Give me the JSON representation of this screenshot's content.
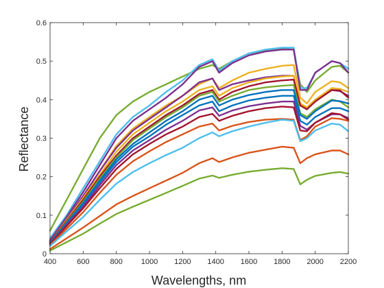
{
  "chart_data": {
    "type": "line",
    "title": "",
    "xlabel": "Wavelengths, nm",
    "ylabel": "Reflectance",
    "xlim": [
      400,
      2200
    ],
    "ylim": [
      0,
      0.6
    ],
    "xticks": [
      400,
      600,
      800,
      1000,
      1200,
      1400,
      1600,
      1800,
      2000,
      2200
    ],
    "yticks": [
      0,
      0.1,
      0.2,
      0.3,
      0.4,
      0.5,
      0.6
    ],
    "grid": false,
    "legend": "none",
    "x": [
      400,
      500,
      600,
      700,
      800,
      900,
      1000,
      1100,
      1200,
      1300,
      1380,
      1420,
      1500,
      1600,
      1700,
      1800,
      1870,
      1910,
      1950,
      2000,
      2100,
      2150,
      2200
    ],
    "series": [
      {
        "color": "#77AC30",
        "values": [
          0.06,
          0.14,
          0.22,
          0.3,
          0.36,
          0.395,
          0.42,
          0.44,
          0.46,
          0.48,
          0.49,
          0.48,
          0.5,
          0.52,
          0.528,
          0.532,
          0.53,
          0.44,
          0.42,
          0.45,
          0.485,
          0.488,
          0.47
        ]
      },
      {
        "color": "#4DBEEE",
        "values": [
          0.04,
          0.1,
          0.17,
          0.24,
          0.31,
          0.355,
          0.385,
          0.42,
          0.45,
          0.49,
          0.505,
          0.475,
          0.5,
          0.52,
          0.53,
          0.535,
          0.535,
          0.43,
          0.43,
          0.47,
          0.5,
          0.495,
          0.48
        ]
      },
      {
        "color": "#7E2F8E",
        "values": [
          0.035,
          0.095,
          0.16,
          0.23,
          0.3,
          0.345,
          0.375,
          0.405,
          0.44,
          0.485,
          0.5,
          0.47,
          0.495,
          0.515,
          0.525,
          0.53,
          0.53,
          0.425,
          0.425,
          0.47,
          0.5,
          0.495,
          0.47
        ]
      },
      {
        "color": "#EDB120",
        "values": [
          0.03,
          0.09,
          0.15,
          0.215,
          0.28,
          0.325,
          0.355,
          0.385,
          0.41,
          0.44,
          0.455,
          0.43,
          0.45,
          0.47,
          0.48,
          0.488,
          0.49,
          0.405,
          0.39,
          0.42,
          0.448,
          0.445,
          0.43
        ]
      },
      {
        "color": "#7E2F8E",
        "values": [
          0.032,
          0.09,
          0.15,
          0.215,
          0.275,
          0.32,
          0.35,
          0.38,
          0.41,
          0.445,
          0.455,
          0.425,
          0.44,
          0.45,
          0.458,
          0.462,
          0.462,
          0.385,
          0.375,
          0.4,
          0.425,
          0.422,
          0.41
        ]
      },
      {
        "color": "#EDB120",
        "values": [
          0.03,
          0.088,
          0.145,
          0.205,
          0.265,
          0.31,
          0.34,
          0.37,
          0.395,
          0.425,
          0.435,
          0.41,
          0.43,
          0.445,
          0.455,
          0.46,
          0.462,
          0.39,
          0.38,
          0.4,
          0.43,
          0.428,
          0.42
        ]
      },
      {
        "color": "#A2142F",
        "values": [
          0.03,
          0.085,
          0.14,
          0.2,
          0.255,
          0.3,
          0.33,
          0.36,
          0.385,
          0.415,
          0.425,
          0.4,
          0.42,
          0.435,
          0.445,
          0.45,
          0.452,
          0.385,
          0.375,
          0.395,
          0.425,
          0.424,
          0.405
        ]
      },
      {
        "color": "#77AC30",
        "values": [
          0.028,
          0.082,
          0.135,
          0.195,
          0.25,
          0.295,
          0.325,
          0.355,
          0.38,
          0.41,
          0.42,
          0.395,
          0.41,
          0.425,
          0.432,
          0.436,
          0.438,
          0.365,
          0.355,
          0.375,
          0.4,
          0.395,
          0.38
        ]
      },
      {
        "color": "#0072BD",
        "values": [
          0.028,
          0.08,
          0.132,
          0.19,
          0.245,
          0.285,
          0.315,
          0.345,
          0.37,
          0.4,
          0.41,
          0.385,
          0.4,
          0.412,
          0.42,
          0.425,
          0.425,
          0.36,
          0.35,
          0.37,
          0.398,
          0.396,
          0.39
        ]
      },
      {
        "color": "#0072BD",
        "values": [
          0.026,
          0.078,
          0.128,
          0.185,
          0.238,
          0.278,
          0.305,
          0.335,
          0.36,
          0.385,
          0.395,
          0.37,
          0.385,
          0.398,
          0.405,
          0.41,
          0.41,
          0.345,
          0.335,
          0.355,
          0.378,
          0.378,
          0.37
        ]
      },
      {
        "color": "#7E2F8E",
        "values": [
          0.025,
          0.075,
          0.122,
          0.178,
          0.23,
          0.268,
          0.295,
          0.322,
          0.345,
          0.372,
          0.38,
          0.358,
          0.372,
          0.383,
          0.39,
          0.395,
          0.395,
          0.332,
          0.322,
          0.34,
          0.362,
          0.362,
          0.352
        ]
      },
      {
        "color": "#A2142F",
        "values": [
          0.024,
          0.072,
          0.118,
          0.17,
          0.22,
          0.258,
          0.285,
          0.31,
          0.33,
          0.355,
          0.363,
          0.345,
          0.358,
          0.37,
          0.378,
          0.382,
          0.38,
          0.32,
          0.318,
          0.34,
          0.365,
          0.362,
          0.348
        ]
      },
      {
        "color": "#D95319",
        "values": [
          0.022,
          0.065,
          0.108,
          0.158,
          0.205,
          0.24,
          0.266,
          0.29,
          0.31,
          0.33,
          0.338,
          0.32,
          0.332,
          0.342,
          0.348,
          0.35,
          0.348,
          0.295,
          0.305,
          0.33,
          0.352,
          0.35,
          0.345
        ]
      },
      {
        "color": "#4DBEEE",
        "values": [
          0.02,
          0.058,
          0.095,
          0.14,
          0.182,
          0.212,
          0.235,
          0.256,
          0.275,
          0.3,
          0.315,
          0.305,
          0.318,
          0.33,
          0.34,
          0.348,
          0.345,
          0.292,
          0.3,
          0.32,
          0.338,
          0.335,
          0.318
        ]
      },
      {
        "color": "#D95319",
        "values": [
          0.012,
          0.04,
          0.068,
          0.098,
          0.128,
          0.15,
          0.17,
          0.19,
          0.21,
          0.235,
          0.248,
          0.238,
          0.25,
          0.262,
          0.27,
          0.278,
          0.275,
          0.235,
          0.248,
          0.258,
          0.268,
          0.268,
          0.258
        ]
      },
      {
        "color": "#77AC30",
        "values": [
          0.008,
          0.03,
          0.052,
          0.078,
          0.103,
          0.122,
          0.14,
          0.158,
          0.176,
          0.195,
          0.203,
          0.197,
          0.205,
          0.213,
          0.218,
          0.222,
          0.22,
          0.18,
          0.192,
          0.202,
          0.21,
          0.212,
          0.208
        ]
      }
    ]
  }
}
